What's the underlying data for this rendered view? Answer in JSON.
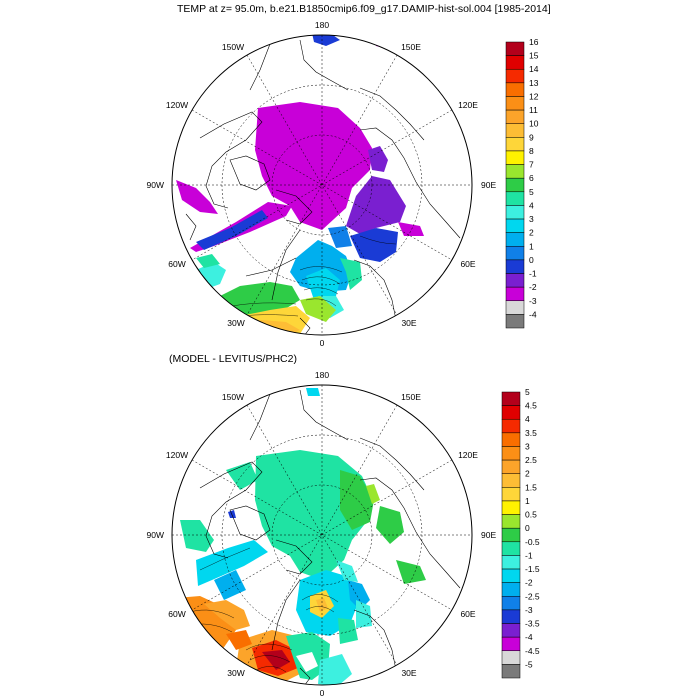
{
  "panels": [
    {
      "title": "TEMP at z=  95.0m, b.e21.B1850cmip6.f09_g17.DAMIP-hist-sol.004 [1985-2014]",
      "lon_labels": {
        "top": "180",
        "bottom": "0",
        "left": "90W",
        "right": "90E",
        "ul1": "150W",
        "ul2": "120W",
        "ur1": "150E",
        "ur2": "120E",
        "ll1": "60W",
        "ll2": "30W",
        "lr1": "60E",
        "lr2": "30E"
      },
      "colorbar_labels": [
        "16",
        "15",
        "14",
        "13",
        "12",
        "11",
        "10",
        "9",
        "8",
        "7",
        "6",
        "5",
        "4",
        "3",
        "2",
        "1",
        "0",
        "-1",
        "-2",
        "-3",
        "-4"
      ],
      "colorbar_colors": [
        "#b3001b",
        "#e00000",
        "#f52a00",
        "#f96e00",
        "#fb8f16",
        "#fca42a",
        "#fdbd35",
        "#fed639",
        "#fff200",
        "#9ae62e",
        "#2ecc47",
        "#1fe3a3",
        "#3df0e0",
        "#00d7ef",
        "#00afee",
        "#1080e8",
        "#1a3bd5",
        "#7a1fd0",
        "#c800d8",
        "#d8d8d8",
        "#7a7a7a"
      ]
    },
    {
      "title": "(MODEL - LEVITUS/PHC2)",
      "lon_labels": {
        "top": "180",
        "bottom": "0",
        "left": "90W",
        "right": "90E",
        "ul1": "150W",
        "ul2": "120W",
        "ur1": "150E",
        "ur2": "120E",
        "ll1": "60W",
        "ll2": "30W",
        "lr1": "60E",
        "lr2": "30E"
      },
      "colorbar_labels": [
        "5",
        "4.5",
        "4",
        "3.5",
        "3",
        "2.5",
        "2",
        "1.5",
        "1",
        "0.5",
        "0",
        "-0.5",
        "-1",
        "-1.5",
        "-2",
        "-2.5",
        "-3",
        "-3.5",
        "-4",
        "-4.5",
        "-5"
      ],
      "colorbar_colors": [
        "#b3001b",
        "#e00000",
        "#f52a00",
        "#f96e00",
        "#fb8f16",
        "#fca42a",
        "#fdbd35",
        "#fed639",
        "#fff200",
        "#9ae62e",
        "#2ecc47",
        "#1fe3a3",
        "#3df0e0",
        "#00d7ef",
        "#00afee",
        "#1080e8",
        "#1a3bd5",
        "#7a1fd0",
        "#c800d8",
        "#d8d8d8",
        "#7a7a7a"
      ]
    }
  ]
}
